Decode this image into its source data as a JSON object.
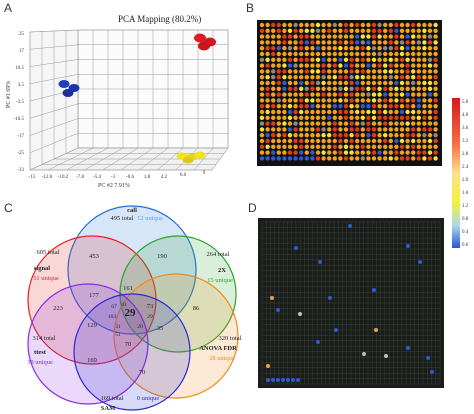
{
  "panels": {
    "a": {
      "letter": "A",
      "title": "PCA Mapping (80.2%)",
      "y_axis_label": "PC #1 69%",
      "x_axis_label": "PC #2 7.91%",
      "y_ticks": [
        "25",
        "17",
        "10.5",
        "3.5",
        "-3.5",
        "-10.5",
        "-17",
        "-25",
        "-33"
      ],
      "x_ticks": [
        "-15",
        "-12.6",
        "-10.2",
        "-7.8",
        "-5.4",
        "-3",
        "-0.6",
        "1.8",
        "4.2",
        "6.6",
        "9"
      ],
      "clusters": [
        {
          "color": "#e01b24",
          "points": 3
        },
        {
          "color": "#1f3fbf",
          "points": 3
        },
        {
          "color": "#f2e21a",
          "points": 4
        }
      ]
    },
    "b": {
      "letter": "B",
      "colorbar_ticks": [
        "4.0",
        "3.6",
        "3.2",
        "2.8",
        "2.4",
        "2.0",
        "1.6",
        "1.2",
        "0.8",
        "0.4",
        "0.0"
      ],
      "colorbar_top": "5.0",
      "grid": {
        "cols": 32,
        "rows": 24
      },
      "colors": {
        "background": "#111111",
        "spot_main": "#f2a31a",
        "spot_red": "#e33a1c",
        "spot_yellow": "#f5e43a",
        "spot_blue": "#2d5bd6",
        "spot_gray": "#8a8a8a"
      }
    },
    "c": {
      "letter": "C",
      "sets": [
        {
          "name": "call",
          "total": "495 total",
          "unique": "12 unique",
          "color": "#1f6fd6",
          "unique_color": "#5aa0e6"
        },
        {
          "name": "signal",
          "total": "605 total",
          "unique": "51 unique",
          "color": "#e02424",
          "unique_color": "#e02424"
        },
        {
          "name": "2X",
          "total": "264 total",
          "unique": "15 unique",
          "color": "#2aa52a",
          "unique_color": "#2aa52a"
        },
        {
          "name": "ANOVA FDR",
          "total": "320 total",
          "unique": "28 unique",
          "color": "#f08a1a",
          "unique_color": "#f08a1a"
        },
        {
          "name": "ttest",
          "total": "314 total",
          "unique": "38 unique",
          "color": "#8a2be2",
          "unique_color": "#8a2be2"
        },
        {
          "name": "SAM",
          "total": "169 total",
          "unique": "0 unique",
          "color": "#2a2ad6",
          "unique_color": "#2a2ad6"
        }
      ],
      "regions": [
        "453",
        "190",
        "177",
        "161",
        "223",
        "86",
        "67",
        "41",
        "73",
        "129",
        "103",
        "31",
        "29",
        "35",
        "51",
        "20",
        "169",
        "70",
        "70"
      ],
      "center": "29"
    },
    "d": {
      "letter": "D",
      "grid": {
        "cols": 42,
        "rows": 30
      },
      "colors": {
        "background": "#1a1d1a",
        "grid_line": "#3e4a3e"
      }
    }
  }
}
